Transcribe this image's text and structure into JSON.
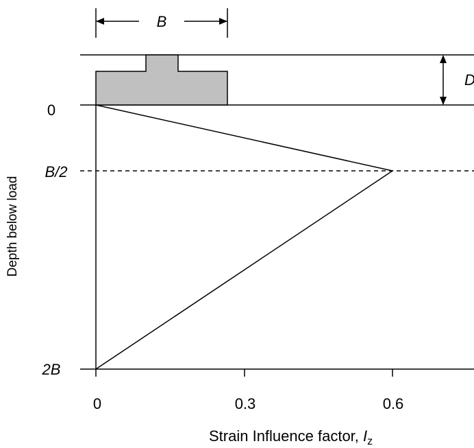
{
  "dimension_labels": {
    "width": "B",
    "embedment": "D"
  },
  "y_ticks": [
    "0",
    "B/2",
    "2B"
  ],
  "x_ticks": [
    "0",
    "0.3",
    "0.6"
  ],
  "y_axis_label": "Depth below load",
  "x_axis_label": {
    "text": "Strain Influence factor, ",
    "symbol": "I",
    "subscript": "z"
  },
  "chart_data": {
    "type": "line",
    "series": [
      {
        "x": [
          0,
          0.6,
          0
        ],
        "y": [
          "0",
          "B/2",
          "2B"
        ]
      }
    ],
    "x_ticks": [
      0,
      0.3,
      0.6
    ],
    "y_ticks": [
      "0",
      "B/2",
      "2B"
    ],
    "y_inverted": true,
    "dashed_reference_at_y": "B/2",
    "colors": {
      "footing_fill": "#c0c0c0",
      "line": "#000000"
    }
  }
}
